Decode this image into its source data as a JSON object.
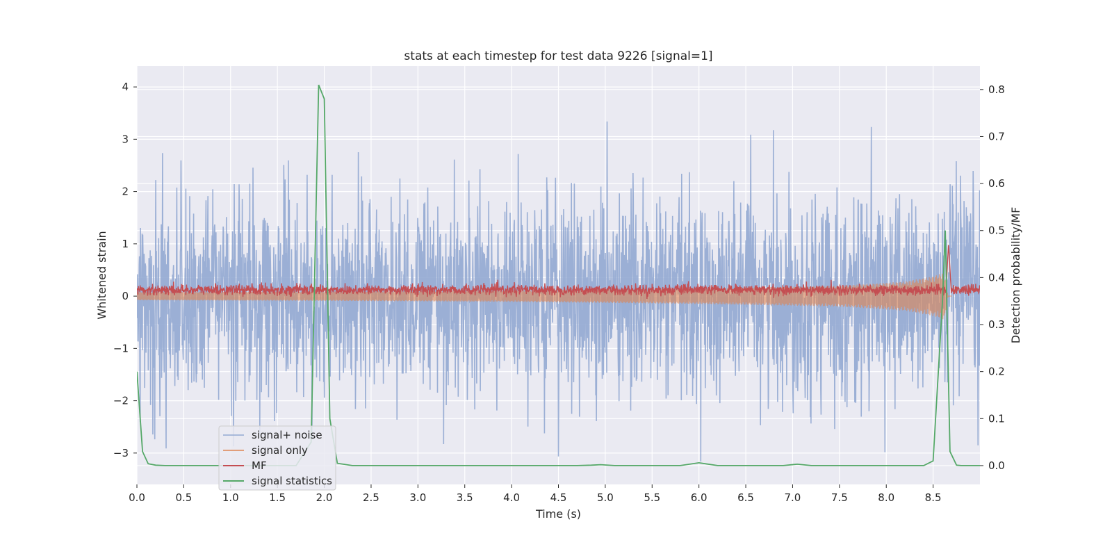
{
  "chart_data": {
    "type": "line",
    "title": "stats at each timestep for test data 9226 [signal=1]",
    "xlabel": "Time (s)",
    "ylabel": "Whitened strain",
    "ylabel_right": "Detection probability/MF",
    "xlim": [
      0.0,
      9.0
    ],
    "ylim": [
      -3.6,
      4.4
    ],
    "ylim_right": [
      -0.04,
      0.85
    ],
    "x_ticks": [
      "0.0",
      "0.5",
      "1.0",
      "1.5",
      "2.0",
      "2.5",
      "3.0",
      "3.5",
      "4.0",
      "4.5",
      "5.0",
      "5.5",
      "6.0",
      "6.5",
      "7.0",
      "7.5",
      "8.0",
      "8.5"
    ],
    "y_ticks": [
      "−3",
      "−2",
      "−1",
      "0",
      "1",
      "2",
      "3",
      "4"
    ],
    "y_ticks_right": [
      "0.0",
      "0.1",
      "0.2",
      "0.3",
      "0.4",
      "0.5",
      "0.6",
      "0.7",
      "0.8"
    ],
    "grid": true,
    "legend_position": "lower-left",
    "series": [
      {
        "name": "signal+ noise",
        "axis": "left",
        "color": "#92a8d1",
        "style": "dense noise, std approx 0.9, range approx [-3.3, 4.0]"
      },
      {
        "name": "signal only",
        "axis": "left",
        "color": "#dd8452",
        "envelope_x": [
          0.0,
          2.0,
          4.0,
          6.0,
          7.5,
          8.2,
          8.5,
          8.62,
          8.66
        ],
        "envelope_amp": [
          0.08,
          0.09,
          0.11,
          0.15,
          0.2,
          0.28,
          0.38,
          0.45,
          0.0
        ]
      },
      {
        "name": "MF",
        "axis": "left",
        "color": "#c44e52",
        "style": "noise around 0.12, amplitude approx 0.1, spike approx 1.0 at 8.66"
      },
      {
        "name": "signal statistics",
        "axis": "right",
        "color": "#55a868",
        "x": [
          0.0,
          0.06,
          0.12,
          0.2,
          0.3,
          1.7,
          1.86,
          1.94,
          2.0,
          2.06,
          2.14,
          2.3,
          4.7,
          4.85,
          4.95,
          5.1,
          5.8,
          6.0,
          6.2,
          6.9,
          7.05,
          7.2,
          8.4,
          8.5,
          8.6,
          8.63,
          8.68,
          8.75,
          8.8,
          9.0
        ],
        "y": [
          0.2,
          0.03,
          0.004,
          0.001,
          0.0,
          0.0,
          0.05,
          0.81,
          0.78,
          0.1,
          0.005,
          0.0,
          0.0,
          0.001,
          0.002,
          0.0,
          0.0,
          0.006,
          0.0,
          0.0,
          0.003,
          0.0,
          0.0,
          0.01,
          0.35,
          0.5,
          0.03,
          0.001,
          0.0,
          0.0
        ]
      }
    ]
  }
}
